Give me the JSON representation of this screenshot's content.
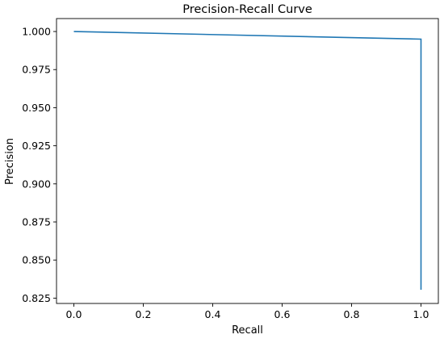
{
  "chart_data": {
    "type": "line",
    "title": "Precision-Recall Curve",
    "xlabel": "Recall",
    "ylabel": "Precision",
    "xlim": [
      -0.05,
      1.05
    ],
    "ylim": [
      0.8215,
      1.0085
    ],
    "xticks": [
      0.0,
      0.2,
      0.4,
      0.6,
      0.8,
      1.0
    ],
    "xtick_labels": [
      "0.0",
      "0.2",
      "0.4",
      "0.6",
      "0.8",
      "1.0"
    ],
    "yticks": [
      0.825,
      0.85,
      0.875,
      0.9,
      0.925,
      0.95,
      0.975,
      1.0
    ],
    "ytick_labels": [
      "0.825",
      "0.850",
      "0.875",
      "0.900",
      "0.925",
      "0.950",
      "0.975",
      "1.000"
    ],
    "grid": false,
    "legend": "none",
    "series": [
      {
        "color": "#1f77b4",
        "x": [
          0.0,
          1.0,
          1.0
        ],
        "y": [
          1.0,
          0.995,
          0.8305
        ]
      }
    ]
  }
}
